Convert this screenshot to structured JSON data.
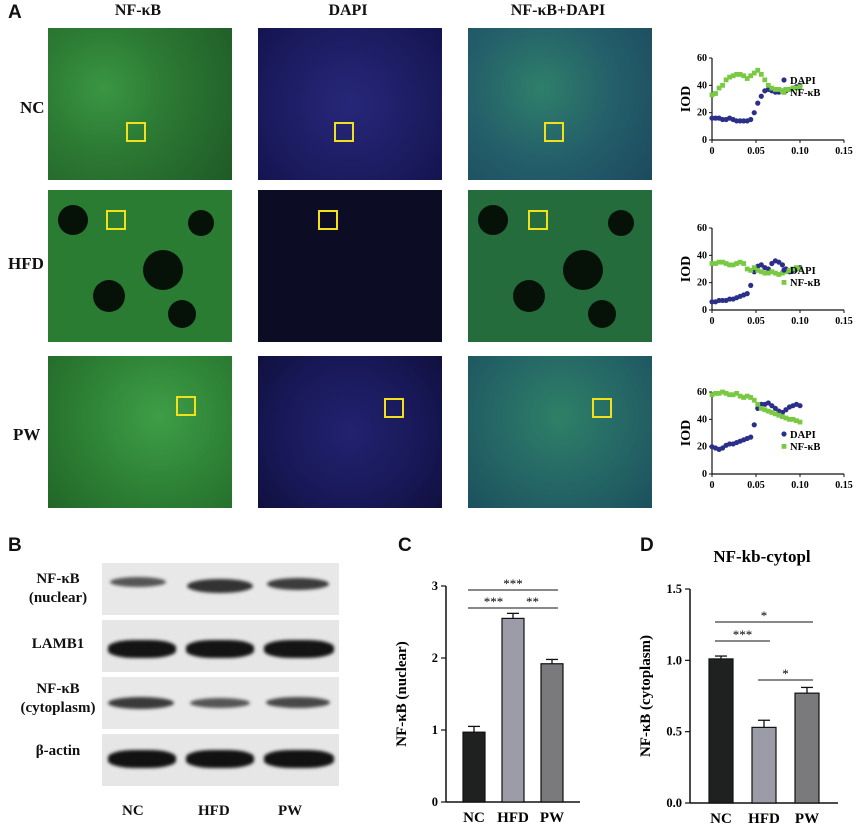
{
  "panel_labels": {
    "a": "A",
    "b": "B",
    "c": "C",
    "d": "D"
  },
  "panelA": {
    "columns": [
      "NF-κB",
      "DAPI",
      "NF-κB+DAPI"
    ],
    "rows": [
      "NC",
      "HFD",
      "PW"
    ],
    "colors": {
      "nfkb_stain": "#2f8a3a",
      "dapi_stain": "#1c1c6a",
      "box": "#f2e01c"
    }
  },
  "panelB": {
    "bands": [
      {
        "label": "NF-κB\n(nuclear)"
      },
      {
        "label": "LAMB1"
      },
      {
        "label": "NF-κB\n(cytoplasm)"
      },
      {
        "label": "β-actin"
      }
    ],
    "lanes": [
      "NC",
      "HFD",
      "PW"
    ]
  },
  "chart_data": [
    {
      "type": "scatter",
      "id": "iod-nc",
      "ylabel": "IOD",
      "xlim": [
        0,
        0.15
      ],
      "ylim": [
        0,
        60
      ],
      "xticks": [
        "0",
        "0.05",
        "0.10",
        "0.15"
      ],
      "yticks": [
        "0",
        "20",
        "40",
        "60"
      ],
      "legend": [
        "DAPI",
        "NF-κB"
      ],
      "series": [
        {
          "name": "DAPI",
          "color": "#2b2f8a",
          "x": [
            0.0,
            0.004,
            0.008,
            0.012,
            0.016,
            0.02,
            0.024,
            0.028,
            0.032,
            0.036,
            0.04,
            0.044,
            0.048,
            0.052,
            0.056,
            0.06,
            0.064,
            0.068,
            0.072,
            0.076,
            0.08,
            0.084,
            0.088,
            0.092,
            0.096,
            0.1
          ],
          "y": [
            16,
            16,
            16,
            15,
            15,
            16,
            15,
            14,
            14,
            14,
            14,
            15,
            20,
            27,
            32,
            36,
            37,
            36,
            35,
            35,
            36,
            36,
            37,
            38,
            39,
            40
          ]
        },
        {
          "name": "NF-κB",
          "color": "#7ac943",
          "x": [
            0.0,
            0.004,
            0.008,
            0.012,
            0.016,
            0.02,
            0.024,
            0.028,
            0.032,
            0.036,
            0.04,
            0.044,
            0.048,
            0.052,
            0.056,
            0.06,
            0.064,
            0.068,
            0.072,
            0.076,
            0.08,
            0.084,
            0.088,
            0.092,
            0.096,
            0.1
          ],
          "y": [
            33,
            34,
            38,
            40,
            44,
            46,
            47,
            48,
            48,
            47,
            45,
            47,
            49,
            51,
            48,
            44,
            40,
            38,
            37,
            37,
            36,
            37,
            37,
            38,
            38,
            39
          ]
        }
      ]
    },
    {
      "type": "scatter",
      "id": "iod-hfd",
      "ylabel": "IOD",
      "xlim": [
        0,
        0.15
      ],
      "ylim": [
        0,
        60
      ],
      "xticks": [
        "0",
        "0.05",
        "0.10",
        "0.15"
      ],
      "yticks": [
        "0",
        "20",
        "40",
        "60"
      ],
      "legend": [
        "DAPI",
        "NF-κB"
      ],
      "series": [
        {
          "name": "DAPI",
          "color": "#2b2f8a",
          "x": [
            0.0,
            0.004,
            0.008,
            0.012,
            0.016,
            0.02,
            0.024,
            0.028,
            0.032,
            0.036,
            0.04,
            0.044,
            0.048,
            0.052,
            0.056,
            0.06,
            0.064,
            0.068,
            0.072,
            0.076,
            0.08,
            0.084,
            0.088,
            0.092,
            0.096,
            0.1
          ],
          "y": [
            6,
            6,
            7,
            7,
            7,
            8,
            8,
            9,
            10,
            11,
            12,
            18,
            28,
            32,
            33,
            31,
            30,
            34,
            36,
            35,
            33,
            30,
            28,
            29,
            30,
            31
          ]
        },
        {
          "name": "NF-κB",
          "color": "#7ac943",
          "x": [
            0.0,
            0.004,
            0.008,
            0.012,
            0.016,
            0.02,
            0.024,
            0.028,
            0.032,
            0.036,
            0.04,
            0.044,
            0.048,
            0.052,
            0.056,
            0.06,
            0.064,
            0.068,
            0.072,
            0.076,
            0.08,
            0.084,
            0.088,
            0.092,
            0.096,
            0.1
          ],
          "y": [
            34,
            34,
            35,
            35,
            34,
            33,
            33,
            34,
            35,
            34,
            30,
            29,
            31,
            29,
            28,
            27,
            27,
            28,
            27,
            26,
            27,
            28,
            29,
            30,
            31,
            30
          ]
        }
      ]
    },
    {
      "type": "scatter",
      "id": "iod-pw",
      "ylabel": "IOD",
      "xlim": [
        0,
        0.15
      ],
      "ylim": [
        0,
        60
      ],
      "xticks": [
        "0",
        "0.05",
        "0.10",
        "0.15"
      ],
      "yticks": [
        "0",
        "20",
        "40",
        "60"
      ],
      "legend": [
        "DAPI",
        "NF-κB"
      ],
      "series": [
        {
          "name": "DAPI",
          "color": "#2b2f8a",
          "x": [
            0.0,
            0.004,
            0.008,
            0.012,
            0.016,
            0.02,
            0.024,
            0.028,
            0.032,
            0.036,
            0.04,
            0.044,
            0.048,
            0.052,
            0.056,
            0.06,
            0.064,
            0.068,
            0.072,
            0.076,
            0.08,
            0.084,
            0.088,
            0.092,
            0.096,
            0.1
          ],
          "y": [
            20,
            19,
            18,
            19,
            21,
            22,
            22,
            23,
            24,
            25,
            26,
            27,
            36,
            48,
            51,
            51,
            52,
            50,
            48,
            46,
            45,
            47,
            49,
            50,
            51,
            50
          ]
        },
        {
          "name": "NF-κB",
          "color": "#7ac943",
          "x": [
            0.0,
            0.004,
            0.008,
            0.012,
            0.016,
            0.02,
            0.024,
            0.028,
            0.032,
            0.036,
            0.04,
            0.044,
            0.048,
            0.052,
            0.056,
            0.06,
            0.064,
            0.068,
            0.072,
            0.076,
            0.08,
            0.084,
            0.088,
            0.092,
            0.096,
            0.1
          ],
          "y": [
            58,
            59,
            59,
            60,
            59,
            58,
            58,
            59,
            57,
            56,
            57,
            56,
            54,
            51,
            48,
            47,
            46,
            45,
            44,
            43,
            42,
            41,
            40,
            40,
            39,
            38
          ]
        }
      ]
    },
    {
      "type": "bar",
      "id": "bar-nuclear",
      "title": "",
      "ylabel": "NF-κB (nuclear)",
      "categories": [
        "NC",
        "HFD",
        "PW"
      ],
      "values": [
        0.97,
        2.55,
        1.92
      ],
      "errors": [
        0.08,
        0.07,
        0.06
      ],
      "colors": [
        "#1e2120",
        "#9c9ca8",
        "#7a7a7c"
      ],
      "ylim": [
        0,
        3
      ],
      "yticks": [
        "0",
        "1",
        "2",
        "3"
      ],
      "significance": [
        {
          "from": 0,
          "to": 2,
          "label": "***"
        },
        {
          "from": 0,
          "to": 1,
          "label": "***"
        },
        {
          "from": 1,
          "to": 2,
          "label": "**"
        }
      ]
    },
    {
      "type": "bar",
      "id": "bar-cytoplasm",
      "title": "NF-kb-cytopl",
      "ylabel": "NF-κB (cytoplasm)",
      "categories": [
        "NC",
        "HFD",
        "PW"
      ],
      "values": [
        1.01,
        0.53,
        0.77
      ],
      "errors": [
        0.02,
        0.05,
        0.04
      ],
      "colors": [
        "#1e2120",
        "#9c9ca8",
        "#7a7a7c"
      ],
      "ylim": [
        0,
        1.5
      ],
      "yticks": [
        "0.0",
        "0.5",
        "1.0",
        "1.5"
      ],
      "significance": [
        {
          "from": 0,
          "to": 2,
          "label": "*"
        },
        {
          "from": 0,
          "to": 1,
          "label": "***"
        },
        {
          "from": 1,
          "to": 2,
          "label": "*"
        }
      ]
    }
  ]
}
